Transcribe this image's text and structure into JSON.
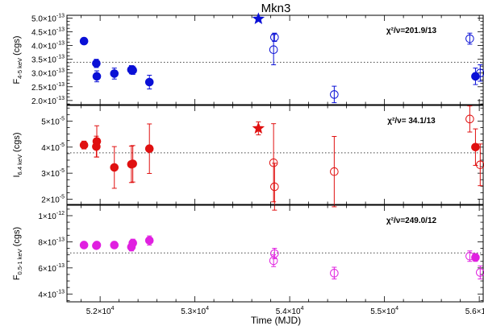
{
  "chart_data": {
    "type": "scatter",
    "title": "Mkn3",
    "xlabel": "Time (MJD)",
    "xlim": [
      51650,
      56050
    ],
    "x_ticks": [
      {
        "value": 52000,
        "mantissa": "5.2×10",
        "exp": "4"
      },
      {
        "value": 53000,
        "mantissa": "5.3×10",
        "exp": "4"
      },
      {
        "value": 54000,
        "mantissa": "5.4×10",
        "exp": "4"
      },
      {
        "value": 55000,
        "mantissa": "5.5×10",
        "exp": "4"
      },
      {
        "value": 56000,
        "mantissa": "5.6×10",
        "exp": "4"
      }
    ],
    "panels": [
      {
        "id": "f4_5",
        "ylabel": "F",
        "ylabel_sub": "4-5 keV",
        "ylabel_unit": " (cgs)",
        "ylim": [
          1.85,
          5.1
        ],
        "y_ticks": [
          {
            "value": 2.0,
            "mantissa": "2.0×10",
            "exp": "-13"
          },
          {
            "value": 2.5,
            "mantissa": "2.5×10",
            "exp": "-13"
          },
          {
            "value": 3.0,
            "mantissa": "3.0×10",
            "exp": "-13"
          },
          {
            "value": 3.5,
            "mantissa": "3.5×10",
            "exp": "-13"
          },
          {
            "value": 4.0,
            "mantissa": "4.0×10",
            "exp": "-13"
          },
          {
            "value": 4.5,
            "mantissa": "4.5×10",
            "exp": "-13"
          },
          {
            "value": 5.0,
            "mantissa": "5.0×10",
            "exp": "-13"
          }
        ],
        "mean": 3.39,
        "color": "#0a10d6",
        "chi_label": "χ²/ν=201.9/13",
        "points": [
          {
            "x": 51830,
            "y": 4.16,
            "err": 0.06,
            "style": "filled"
          },
          {
            "x": 51960,
            "y": 3.35,
            "err": 0.15,
            "style": "filled"
          },
          {
            "x": 51965,
            "y": 2.88,
            "err": 0.2,
            "style": "filled"
          },
          {
            "x": 52150,
            "y": 2.98,
            "err": 0.2,
            "style": "filled"
          },
          {
            "x": 52330,
            "y": 3.12,
            "err": 0.15,
            "style": "filled"
          },
          {
            "x": 52345,
            "y": 3.1,
            "err": 0.15,
            "style": "filled"
          },
          {
            "x": 52520,
            "y": 2.67,
            "err": 0.25,
            "style": "filled"
          },
          {
            "x": 53670,
            "y": 4.97,
            "err": 0.0,
            "style": "star"
          },
          {
            "x": 53830,
            "y": 3.85,
            "err": 0.55,
            "style": "open"
          },
          {
            "x": 53840,
            "y": 4.3,
            "err": 0.15,
            "style": "open"
          },
          {
            "x": 54470,
            "y": 2.22,
            "err": 0.3,
            "style": "open"
          },
          {
            "x": 55900,
            "y": 4.25,
            "err": 0.2,
            "style": "open"
          },
          {
            "x": 55960,
            "y": 2.88,
            "err": 0.3,
            "style": "filled"
          },
          {
            "x": 56010,
            "y": 3.0,
            "err": 0.3,
            "style": "open"
          }
        ]
      },
      {
        "id": "i6_4",
        "ylabel": "I",
        "ylabel_sub": "6.4 keV",
        "ylabel_unit": " (cgs)",
        "ylim": [
          1.8,
          5.6
        ],
        "y_ticks": [
          {
            "value": 2.0,
            "mantissa": "2×10",
            "exp": "-5"
          },
          {
            "value": 3.0,
            "mantissa": "3×10",
            "exp": "-5"
          },
          {
            "value": 4.0,
            "mantissa": "4×10",
            "exp": "-5"
          },
          {
            "value": 5.0,
            "mantissa": "5×10",
            "exp": "-5"
          }
        ],
        "mean": 3.78,
        "color": "#e01010",
        "chi_label": "χ²/ν= 34.1/13",
        "points": [
          {
            "x": 51830,
            "y": 4.08,
            "err": 0.15,
            "style": "filled"
          },
          {
            "x": 51960,
            "y": 4.02,
            "err": 0.4,
            "style": "filled"
          },
          {
            "x": 51965,
            "y": 4.22,
            "err": 0.6,
            "style": "filled"
          },
          {
            "x": 52150,
            "y": 3.22,
            "err": 0.8,
            "style": "filled"
          },
          {
            "x": 52330,
            "y": 3.34,
            "err": 0.7,
            "style": "filled"
          },
          {
            "x": 52345,
            "y": 3.36,
            "err": 0.7,
            "style": "filled"
          },
          {
            "x": 52520,
            "y": 3.94,
            "err": 0.95,
            "style": "filled"
          },
          {
            "x": 53670,
            "y": 4.72,
            "err": 0.25,
            "style": "star"
          },
          {
            "x": 53830,
            "y": 3.4,
            "err": 1.5,
            "style": "open"
          },
          {
            "x": 53840,
            "y": 2.48,
            "err": 0.9,
            "style": "open"
          },
          {
            "x": 54470,
            "y": 3.06,
            "err": 1.35,
            "style": "open"
          },
          {
            "x": 55900,
            "y": 5.08,
            "err": 0.5,
            "style": "open"
          },
          {
            "x": 55960,
            "y": 4.0,
            "err": 0.7,
            "style": "filled"
          },
          {
            "x": 56010,
            "y": 3.32,
            "err": 0.8,
            "style": "open"
          }
        ]
      },
      {
        "id": "f0_5_1",
        "ylabel": "F",
        "ylabel_sub": "0.5-1 keV",
        "ylabel_unit": " (cgs)",
        "ylim": [
          3.4,
          10.8
        ],
        "y_ticks": [
          {
            "value": 4.0,
            "mantissa": "4×10",
            "exp": "-13"
          },
          {
            "value": 6.0,
            "mantissa": "6×10",
            "exp": "-13"
          },
          {
            "value": 8.0,
            "mantissa": "8×10",
            "exp": "-13"
          },
          {
            "value": 10.0,
            "mantissa": "1×10",
            "exp": "-12"
          }
        ],
        "mean": 7.15,
        "color": "#e020e0",
        "chi_label": "χ²/ν=249.0/12",
        "points": [
          {
            "x": 51830,
            "y": 7.75,
            "err": 0.2,
            "style": "filled"
          },
          {
            "x": 51960,
            "y": 7.7,
            "err": 0.2,
            "style": "filled"
          },
          {
            "x": 51965,
            "y": 7.75,
            "err": 0.2,
            "style": "filled"
          },
          {
            "x": 52150,
            "y": 7.75,
            "err": 0.25,
            "style": "filled"
          },
          {
            "x": 52330,
            "y": 7.6,
            "err": 0.3,
            "style": "filled"
          },
          {
            "x": 52345,
            "y": 7.9,
            "err": 0.3,
            "style": "filled"
          },
          {
            "x": 52520,
            "y": 8.1,
            "err": 0.35,
            "style": "filled"
          },
          {
            "x": 53830,
            "y": 6.55,
            "err": 0.45,
            "style": "open"
          },
          {
            "x": 53840,
            "y": 7.1,
            "err": 0.4,
            "style": "open"
          },
          {
            "x": 54470,
            "y": 5.6,
            "err": 0.45,
            "style": "open"
          },
          {
            "x": 55900,
            "y": 6.9,
            "err": 0.4,
            "style": "open"
          },
          {
            "x": 55960,
            "y": 6.8,
            "err": 0.3,
            "style": "filled"
          },
          {
            "x": 56010,
            "y": 5.65,
            "err": 0.5,
            "style": "open"
          }
        ]
      }
    ]
  }
}
